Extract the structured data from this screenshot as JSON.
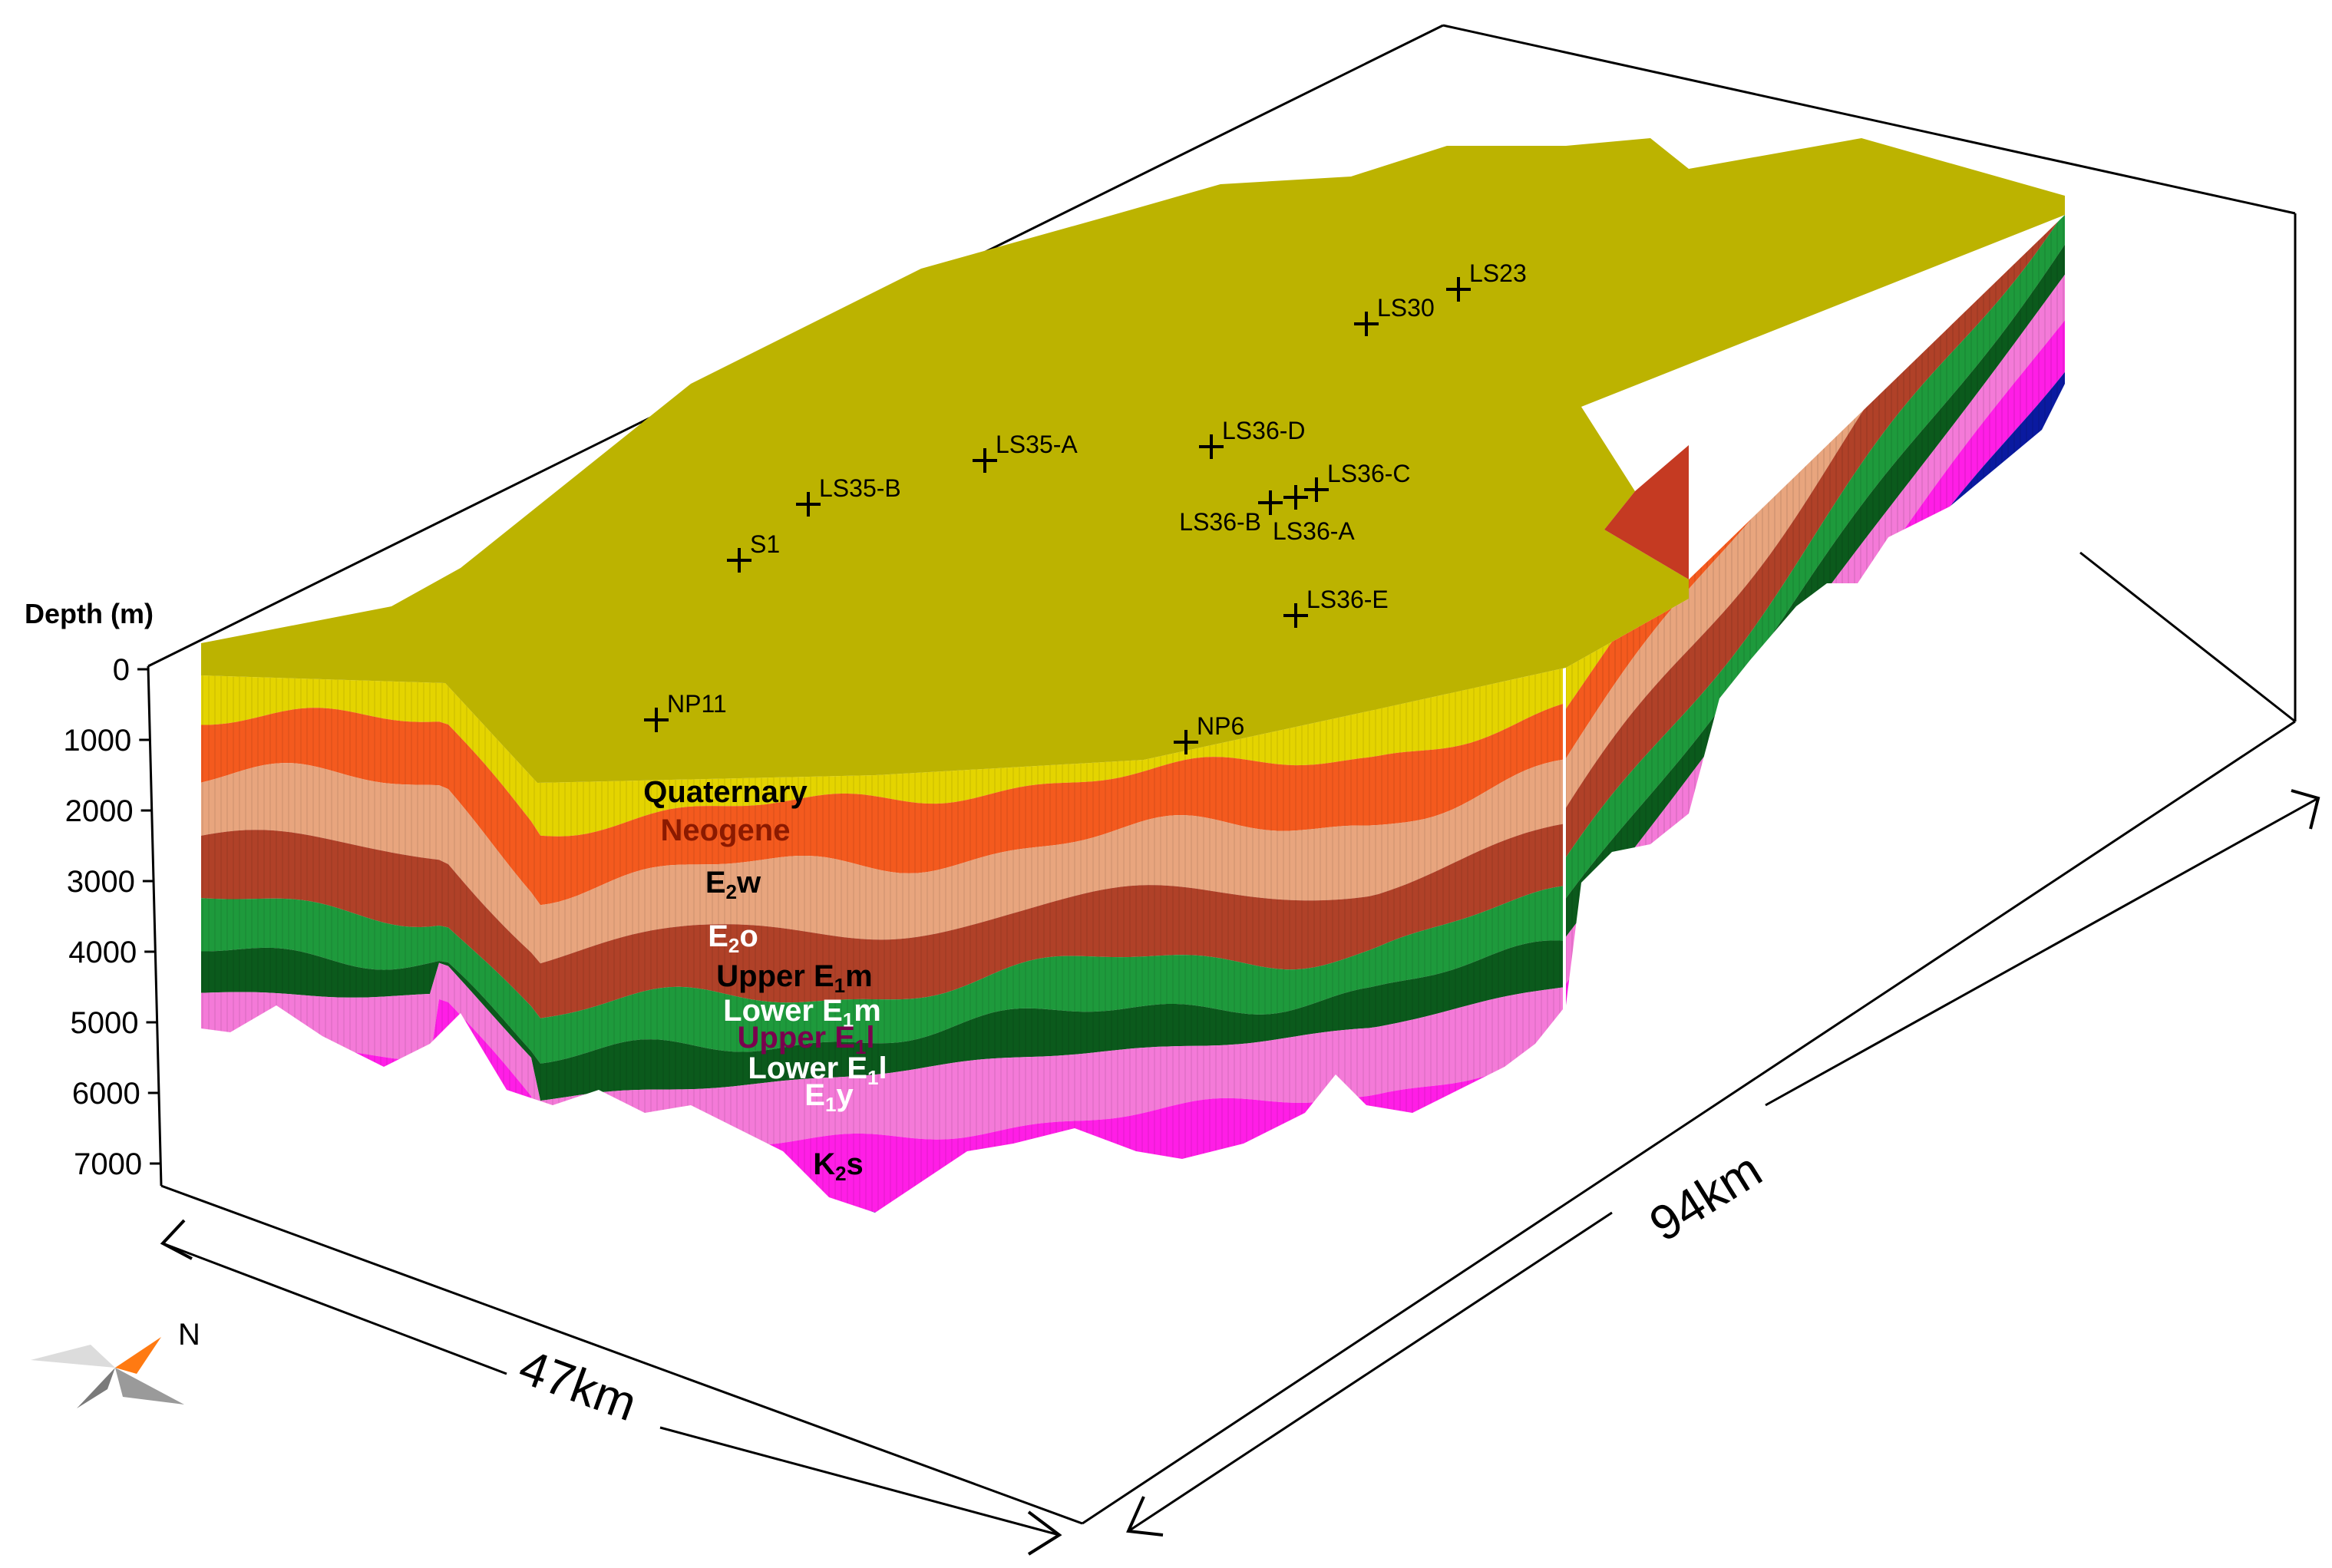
{
  "axis": {
    "title": "Depth (m)",
    "ticks": [
      "0",
      "1000",
      "2000",
      "3000",
      "4000",
      "5000",
      "6000",
      "7000"
    ]
  },
  "wells": [
    {
      "id": "LS23",
      "label": "LS23"
    },
    {
      "id": "LS30",
      "label": "LS30"
    },
    {
      "id": "LS36-D",
      "label": "LS36-D"
    },
    {
      "id": "LS35-A",
      "label": "LS35-A"
    },
    {
      "id": "LS35-B",
      "label": "LS35-B"
    },
    {
      "id": "LS36-C",
      "label": "LS36-C"
    },
    {
      "id": "LS36-B",
      "label": "LS36-B"
    },
    {
      "id": "LS36-A",
      "label": "LS36-A"
    },
    {
      "id": "S1",
      "label": "S1"
    },
    {
      "id": "LS36-E",
      "label": "LS36-E"
    },
    {
      "id": "NP11",
      "label": "NP11"
    },
    {
      "id": "NP6",
      "label": "NP6"
    }
  ],
  "layers": [
    {
      "id": "quaternary",
      "main": "Quaternary",
      "sub": "",
      "suffix": "",
      "color": "#e4d400",
      "text_color": "#000000"
    },
    {
      "id": "neogene",
      "main": "Neogene",
      "sub": "",
      "suffix": "",
      "color": "#f45a1e",
      "text_color": "#8b1a00"
    },
    {
      "id": "e2w",
      "main": "E",
      "sub": "2",
      "suffix": "w",
      "color": "#e8a57e",
      "text_color": "#000000"
    },
    {
      "id": "e2o",
      "main": "E",
      "sub": "2",
      "suffix": "o",
      "color": "#b04128",
      "text_color": "#ffffff"
    },
    {
      "id": "upper-e1m",
      "main": "Upper E",
      "sub": "1",
      "suffix": "m",
      "color": "#1e9a3c",
      "text_color": "#000000"
    },
    {
      "id": "lower-e1m",
      "main": "Lower E",
      "sub": "1",
      "suffix": "m",
      "color": "#0b5a1c",
      "text_color": "#ffffff"
    },
    {
      "id": "upper-e1l",
      "main": "Upper E",
      "sub": "1",
      "suffix": "l",
      "color": "#f47ad8",
      "text_color": "#7a004e"
    },
    {
      "id": "lower-e1l",
      "main": "Lower E",
      "sub": "1",
      "suffix": "l",
      "color": "#ff1ee6",
      "text_color": "#ffffff"
    },
    {
      "id": "e1y",
      "main": "E",
      "sub": "1",
      "suffix": "y",
      "color": "#0a1aa0",
      "text_color": "#ffffff"
    },
    {
      "id": "k2s",
      "main": "K",
      "sub": "2",
      "suffix": "s",
      "color": "#3fc6e4",
      "text_color": "#000000"
    }
  ],
  "top_surface_color": "#bcb300",
  "dimensions": {
    "width_label": "47km",
    "length_label": "94km"
  },
  "compass": {
    "label": "N",
    "arrow_color": "#ff7a12"
  }
}
